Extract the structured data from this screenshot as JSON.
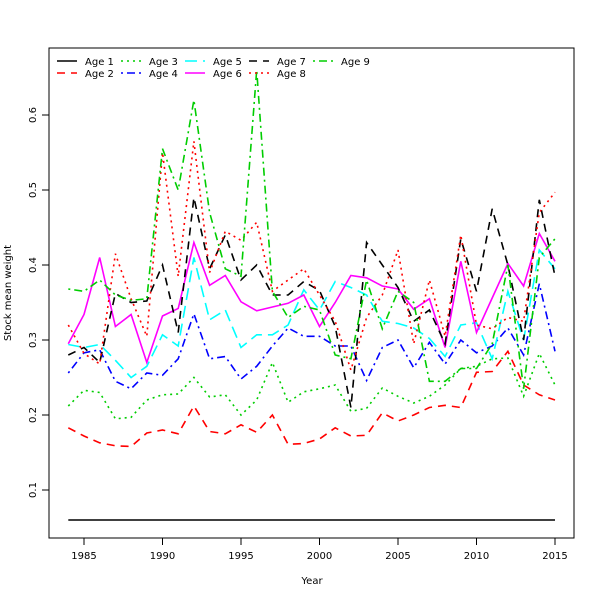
{
  "chart_data": {
    "type": "line",
    "title": "",
    "xlabel": "Year",
    "ylabel": "Stock mean weight",
    "xlim": [
      1983,
      2016
    ],
    "ylim": [
      0.04,
      0.69
    ],
    "xticks": [
      1985,
      1990,
      1995,
      2000,
      2005,
      2010,
      2015
    ],
    "xtick_labels": [
      "1985",
      "1990",
      "1995",
      "2000",
      "2005",
      "2010",
      "2015"
    ],
    "yticks": [
      0.1,
      0.2,
      0.3,
      0.4,
      0.5,
      0.6
    ],
    "ytick_labels": [
      "0.1",
      "0.2",
      "0.3",
      "0.4",
      "0.5",
      "0.6"
    ],
    "grid": false,
    "legend_position": "top-left",
    "x": [
      1984,
      1985,
      1986,
      1987,
      1988,
      1989,
      1990,
      1991,
      1992,
      1993,
      1994,
      1995,
      1996,
      1997,
      1998,
      1999,
      2000,
      2001,
      2002,
      2003,
      2004,
      2005,
      2006,
      2007,
      2008,
      2009,
      2010,
      2011,
      2012,
      2013,
      2014,
      2015
    ],
    "series": [
      {
        "name": "Age 1",
        "color": "#000000",
        "dash": "solid",
        "values": [
          0.06,
          0.06,
          0.06,
          0.06,
          0.06,
          0.06,
          0.06,
          0.06,
          0.06,
          0.06,
          0.06,
          0.06,
          0.06,
          0.06,
          0.06,
          0.06,
          0.06,
          0.06,
          0.06,
          0.06,
          0.06,
          0.06,
          0.06,
          0.06,
          0.06,
          0.06,
          0.06,
          0.06,
          0.06,
          0.06,
          0.06,
          0.06
        ]
      },
      {
        "name": "Age 2",
        "color": "#ff0000",
        "dash": "dashed",
        "values": [
          0.183,
          0.172,
          0.163,
          0.159,
          0.158,
          0.176,
          0.18,
          0.175,
          0.212,
          0.178,
          0.175,
          0.187,
          0.177,
          0.2,
          0.161,
          0.162,
          0.168,
          0.183,
          0.172,
          0.173,
          0.203,
          0.192,
          0.2,
          0.21,
          0.213,
          0.21,
          0.257,
          0.258,
          0.285,
          0.24,
          0.227,
          0.22
        ]
      },
      {
        "name": "Age 3",
        "color": "#00cd00",
        "dash": "dotted",
        "values": [
          0.212,
          0.233,
          0.23,
          0.195,
          0.197,
          0.22,
          0.227,
          0.228,
          0.25,
          0.224,
          0.227,
          0.2,
          0.22,
          0.27,
          0.217,
          0.231,
          0.235,
          0.24,
          0.205,
          0.209,
          0.236,
          0.225,
          0.216,
          0.225,
          0.24,
          0.262,
          0.265,
          0.275,
          0.276,
          0.225,
          0.282,
          0.24
        ]
      },
      {
        "name": "Age 4",
        "color": "#0000ff",
        "dash": "dotdash",
        "values": [
          0.256,
          0.283,
          0.287,
          0.245,
          0.235,
          0.256,
          0.253,
          0.275,
          0.335,
          0.275,
          0.278,
          0.248,
          0.265,
          0.292,
          0.316,
          0.305,
          0.305,
          0.292,
          0.292,
          0.246,
          0.29,
          0.3,
          0.263,
          0.297,
          0.268,
          0.3,
          0.283,
          0.292,
          0.316,
          0.28,
          0.375,
          0.285
        ]
      },
      {
        "name": "Age 5",
        "color": "#00ffff",
        "dash": "longdash",
        "values": [
          0.294,
          0.29,
          0.294,
          0.273,
          0.25,
          0.265,
          0.307,
          0.292,
          0.41,
          0.327,
          0.34,
          0.29,
          0.307,
          0.307,
          0.32,
          0.367,
          0.34,
          0.378,
          0.37,
          0.36,
          0.325,
          0.322,
          0.316,
          0.302,
          0.278,
          0.32,
          0.323,
          0.275,
          0.365,
          0.3,
          0.42,
          0.395
        ]
      },
      {
        "name": "Age 6",
        "color": "#ff00ff",
        "dash": "solid",
        "values": [
          0.295,
          0.334,
          0.41,
          0.318,
          0.334,
          0.27,
          0.332,
          0.342,
          0.43,
          0.373,
          0.386,
          0.351,
          0.339,
          0.344,
          0.349,
          0.36,
          0.318,
          0.35,
          0.386,
          0.383,
          0.372,
          0.368,
          0.341,
          0.355,
          0.29,
          0.405,
          0.31,
          0.356,
          0.402,
          0.372,
          0.442,
          0.405
        ]
      },
      {
        "name": "Age 7",
        "color": "#000000",
        "dash": "dashed",
        "values": [
          0.28,
          0.29,
          0.27,
          0.362,
          0.35,
          0.352,
          0.4,
          0.31,
          0.49,
          0.395,
          0.44,
          0.38,
          0.4,
          0.36,
          0.36,
          0.378,
          0.366,
          0.318,
          0.21,
          0.43,
          0.4,
          0.37,
          0.325,
          0.34,
          0.295,
          0.435,
          0.365,
          0.475,
          0.4,
          0.3,
          0.487,
          0.385
        ]
      },
      {
        "name": "Age 8",
        "color": "#ff0000",
        "dash": "dotted",
        "values": [
          0.32,
          0.282,
          0.268,
          0.415,
          0.355,
          0.305,
          0.55,
          0.385,
          0.565,
          0.39,
          0.445,
          0.433,
          0.457,
          0.365,
          0.38,
          0.395,
          0.36,
          0.325,
          0.26,
          0.33,
          0.36,
          0.42,
          0.295,
          0.38,
          0.305,
          0.44,
          0.32,
          0.315,
          0.33,
          0.325,
          0.47,
          0.497
        ]
      },
      {
        "name": "Age 9",
        "color": "#00cd00",
        "dash": "dotdash",
        "values": [
          0.368,
          0.365,
          0.38,
          0.36,
          0.353,
          0.355,
          0.555,
          0.5,
          0.62,
          0.47,
          0.395,
          0.385,
          0.66,
          0.365,
          0.33,
          0.345,
          0.34,
          0.28,
          0.275,
          0.38,
          0.315,
          0.365,
          0.35,
          0.245,
          0.245,
          0.262,
          0.262,
          0.295,
          0.4,
          0.235,
          0.41,
          0.435
        ]
      }
    ]
  }
}
